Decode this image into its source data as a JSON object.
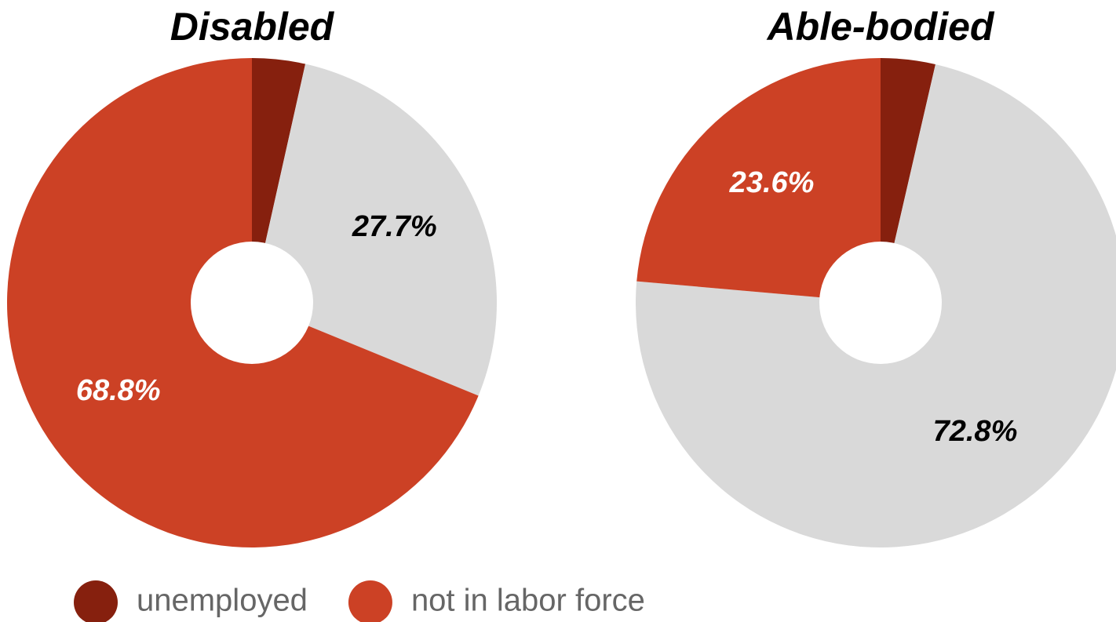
{
  "chart_data": [
    {
      "type": "pie",
      "title": "Disabled",
      "donut": true,
      "values": [
        3.5,
        27.7,
        68.8
      ],
      "value_labels": [
        null,
        "27.7%",
        "68.8%"
      ],
      "colors": [
        "#86200e",
        "#d9d9d9",
        "#cc4125"
      ]
    },
    {
      "type": "pie",
      "title": "Able-bodied",
      "donut": true,
      "values": [
        3.6,
        72.8,
        23.6
      ],
      "value_labels": [
        null,
        "72.8%",
        "23.6%"
      ],
      "colors": [
        "#86200e",
        "#d9d9d9",
        "#cc4125"
      ]
    }
  ],
  "legend": {
    "position": "bottom-left",
    "items": [
      {
        "name": "unemployed",
        "color": "#86200e"
      },
      {
        "name": "not in labor force",
        "color": "#cc4125"
      }
    ]
  }
}
